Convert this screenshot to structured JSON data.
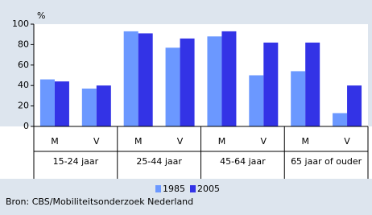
{
  "chart_data": {
    "type": "bar",
    "y_label": "%",
    "categories": [
      "M",
      "V",
      "M",
      "V",
      "M",
      "V",
      "M",
      "V"
    ],
    "groups": [
      "15-24 jaar",
      "25-44 jaar",
      "45-64 jaar",
      "65 jaar of ouder"
    ],
    "series": [
      {
        "name": "1985",
        "color": "#6b98ff",
        "values": [
          46,
          37,
          93,
          77,
          88,
          50,
          54,
          13
        ]
      },
      {
        "name": "2005",
        "color": "#3333e6",
        "values": [
          44,
          40,
          91,
          86,
          93,
          82,
          82,
          40
        ]
      }
    ],
    "ylim": [
      0,
      100
    ],
    "yticks": [
      0,
      20,
      40,
      60,
      80,
      100
    ],
    "grid": false,
    "source": "Bron: CBS/Mobiliteitsonderzoek Nederland"
  }
}
